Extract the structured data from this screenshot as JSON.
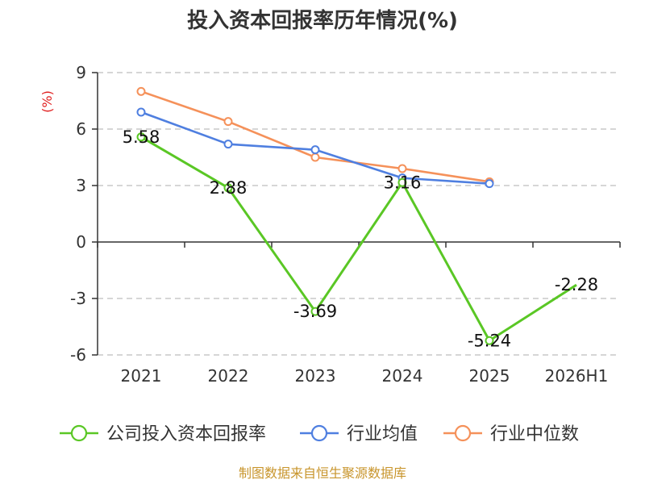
{
  "chart_data": {
    "type": "line",
    "title": "投入资本回报率历年情况(%)",
    "y_unit": "(%)",
    "categories": [
      "2021",
      "2022",
      "2023",
      "2024",
      "2025",
      "2026H1"
    ],
    "ylim": [
      -6,
      9
    ],
    "yticks": [
      9,
      6,
      3,
      0,
      -3,
      -6
    ],
    "grid": true,
    "legend_position": "bottom",
    "series": [
      {
        "name": "公司投入资本回报率",
        "color": "#5ac725",
        "values": [
          5.58,
          2.88,
          -3.69,
          3.16,
          -5.24,
          -2.28
        ],
        "labels": [
          "5.58",
          "2.88",
          "-3.69",
          "3.16",
          "-5.24",
          "-2.28"
        ]
      },
      {
        "name": "行业均值",
        "color": "#4f7fe0",
        "values": [
          6.9,
          5.2,
          4.9,
          3.4,
          3.1,
          null
        ]
      },
      {
        "name": "行业中位数",
        "color": "#f5915a",
        "values": [
          8.0,
          6.4,
          4.5,
          3.9,
          3.2,
          null
        ]
      }
    ]
  },
  "source": "制图数据来自恒生聚源数据库"
}
